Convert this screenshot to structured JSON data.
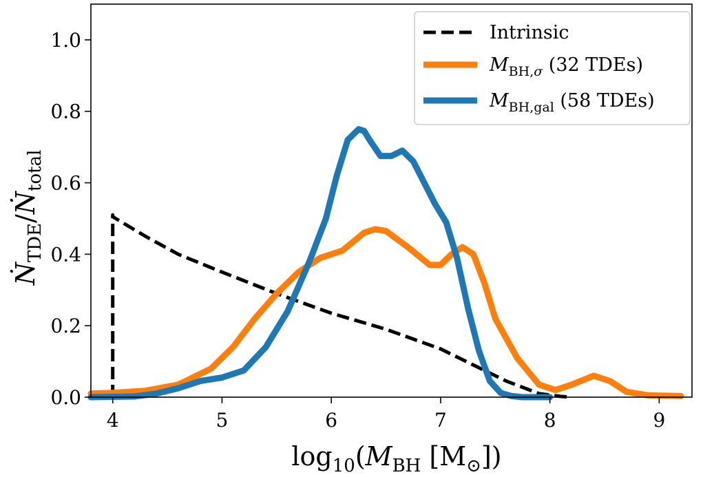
{
  "chart_data": {
    "type": "line",
    "xlabel": "log10(MBH [M⊙])",
    "ylabel": "ṄTDE/Ṅtotal",
    "xlim": [
      3.8,
      9.3
    ],
    "ylim": [
      0.0,
      1.1
    ],
    "xticks": [
      4,
      5,
      6,
      7,
      8,
      9
    ],
    "yticks": [
      0.0,
      0.2,
      0.4,
      0.6,
      0.8,
      1.0
    ],
    "xtick_labels": [
      "4",
      "5",
      "6",
      "7",
      "8",
      "9"
    ],
    "ytick_labels": [
      "0.0",
      "0.2",
      "0.4",
      "0.6",
      "0.8",
      "1.0"
    ],
    "grid": false,
    "legend_position": "top-right",
    "series": [
      {
        "name": "Intrinsic",
        "color": "#000000",
        "style": "dashed",
        "x": [
          4.0,
          4.0,
          4.0,
          4.3,
          4.6,
          5.0,
          5.5,
          6.0,
          6.5,
          7.0,
          7.3,
          7.6,
          7.9,
          8.1,
          8.2
        ],
        "y": [
          0.0,
          0.51,
          0.505,
          0.45,
          0.4,
          0.35,
          0.29,
          0.235,
          0.19,
          0.135,
          0.09,
          0.045,
          0.01,
          0.002,
          0.0
        ]
      },
      {
        "name": "MBH,σ (32 TDEs)",
        "color": "#ff7f0e",
        "style": "solid",
        "x": [
          3.8,
          4.0,
          4.3,
          4.6,
          4.9,
          5.1,
          5.3,
          5.5,
          5.7,
          5.9,
          6.1,
          6.3,
          6.4,
          6.5,
          6.7,
          6.9,
          7.0,
          7.1,
          7.2,
          7.3,
          7.4,
          7.5,
          7.7,
          7.9,
          8.05,
          8.2,
          8.4,
          8.55,
          8.7,
          8.9,
          9.2
        ],
        "y": [
          0.01,
          0.012,
          0.018,
          0.035,
          0.08,
          0.14,
          0.22,
          0.29,
          0.35,
          0.39,
          0.41,
          0.46,
          0.47,
          0.465,
          0.42,
          0.37,
          0.37,
          0.4,
          0.42,
          0.4,
          0.32,
          0.22,
          0.11,
          0.035,
          0.02,
          0.035,
          0.06,
          0.045,
          0.015,
          0.005,
          0.003
        ]
      },
      {
        "name": "MBH,gal (58 TDEs)",
        "color": "#1f77b4",
        "style": "solid",
        "x": [
          3.8,
          4.2,
          4.4,
          4.6,
          4.8,
          5.0,
          5.2,
          5.4,
          5.6,
          5.8,
          5.95,
          6.05,
          6.15,
          6.25,
          6.3,
          6.35,
          6.45,
          6.55,
          6.65,
          6.75,
          6.85,
          6.95,
          7.05,
          7.15,
          7.25,
          7.35,
          7.45,
          7.55,
          7.65,
          7.75,
          8.0
        ],
        "y": [
          0.0,
          0.002,
          0.01,
          0.025,
          0.045,
          0.055,
          0.075,
          0.14,
          0.24,
          0.38,
          0.5,
          0.62,
          0.72,
          0.75,
          0.745,
          0.72,
          0.675,
          0.675,
          0.69,
          0.66,
          0.6,
          0.54,
          0.49,
          0.39,
          0.25,
          0.13,
          0.045,
          0.012,
          0.003,
          0.0,
          0.0
        ]
      }
    ]
  }
}
